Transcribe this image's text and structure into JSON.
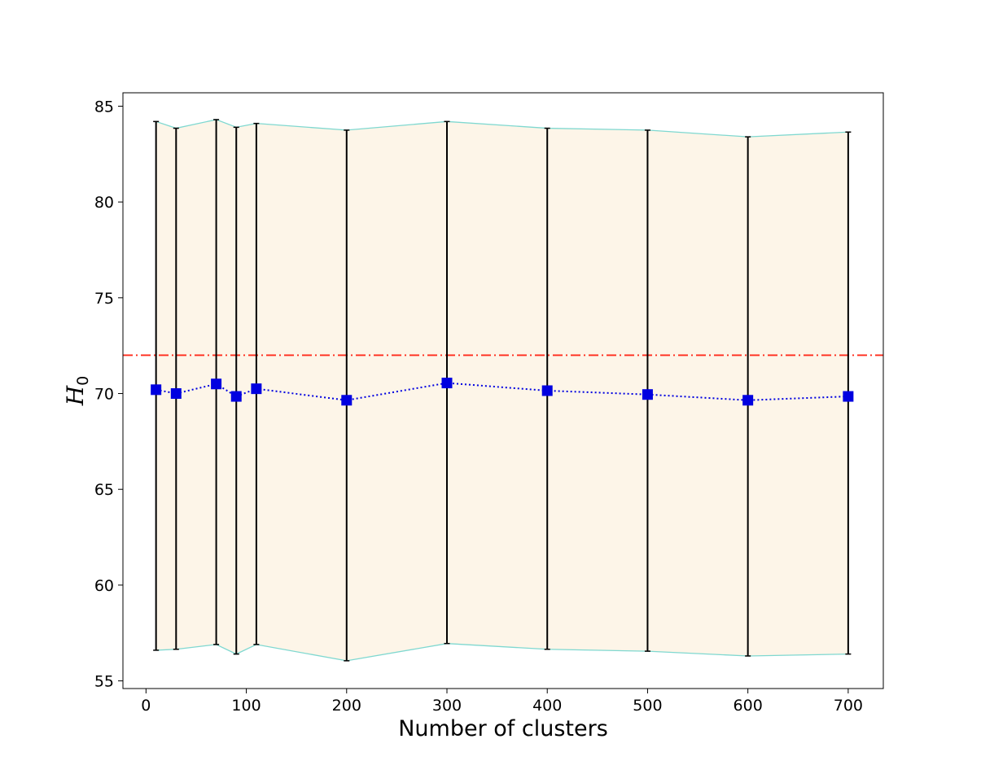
{
  "chart_data": {
    "type": "line",
    "title": "",
    "xlabel": "Number of clusters",
    "ylabel": {
      "main": "H",
      "subscript": "0"
    },
    "xlim": [
      -23,
      735
    ],
    "ylim": [
      54.6,
      85.7
    ],
    "xticks": [
      0,
      100,
      200,
      300,
      400,
      500,
      600,
      700
    ],
    "yticks": [
      55,
      60,
      65,
      70,
      75,
      80,
      85
    ],
    "grid": false,
    "legend": "none",
    "reference_line": {
      "y": 72,
      "color": "#ff2a1a",
      "style": "dashdot"
    },
    "series": [
      {
        "marker": "square",
        "color": "#0000e0",
        "line_style": "dotted",
        "x": [
          10,
          30,
          70,
          90,
          110,
          200,
          300,
          400,
          500,
          600,
          700
        ],
        "y": [
          70.2,
          70.0,
          70.5,
          69.85,
          70.25,
          69.65,
          70.55,
          70.15,
          69.95,
          69.65,
          69.85
        ],
        "lower": [
          56.6,
          56.65,
          56.9,
          56.4,
          56.9,
          56.05,
          56.95,
          56.65,
          56.55,
          56.3,
          56.4
        ],
        "upper": [
          84.2,
          83.85,
          84.3,
          83.9,
          84.1,
          83.75,
          84.2,
          83.85,
          83.75,
          83.4,
          83.65
        ]
      }
    ],
    "band": {
      "fill": "#fdf5e8",
      "edge": "#7fd8d0"
    }
  }
}
